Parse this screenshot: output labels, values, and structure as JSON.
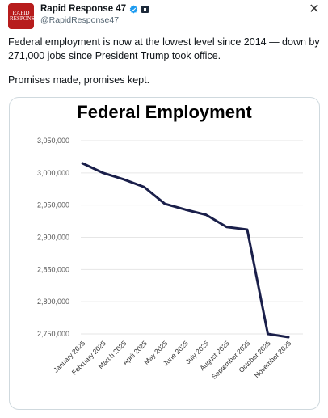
{
  "account": {
    "display_name": "Rapid Response 47",
    "handle": "@RapidResponse47",
    "avatar_text": "RAPID RESPONSE",
    "avatar_color": "#b71c1c"
  },
  "tweet": {
    "paragraphs": [
      "Federal employment is now at the lowest level since 2014 — down by 271,000 jobs since President Trump took office.",
      "Promises made, promises kept."
    ]
  },
  "icons": {
    "verified": "verified-badge-icon",
    "government": "government-badge-icon",
    "close": "close-icon"
  },
  "colors": {
    "line": "#1a1f4a",
    "grid": "#e6e6e6",
    "verified": "#1d9bf0"
  },
  "chart_data": {
    "type": "line",
    "title": "Federal Employment",
    "categories": [
      "January 2025",
      "February 2025",
      "March 2025",
      "April 2025",
      "May 2025",
      "June 2025",
      "July 2025",
      "August 2025",
      "September 2025",
      "October 2025",
      "November 2025"
    ],
    "series": [
      {
        "values": [
          3015000,
          3000000,
          2990000,
          2978000,
          2952000,
          2943000,
          2935000,
          2916000,
          2912000,
          2750000,
          2745000
        ]
      }
    ],
    "y_ticks": [
      "3,050,000",
      "3,000,000",
      "2,950,000",
      "2,900,000",
      "2,850,000",
      "2,800,000",
      "2,750,000"
    ],
    "y_tick_values": [
      3050000,
      3000000,
      2950000,
      2900000,
      2850000,
      2800000,
      2750000
    ],
    "ylim": [
      2750000,
      3050000
    ],
    "grid": true
  }
}
